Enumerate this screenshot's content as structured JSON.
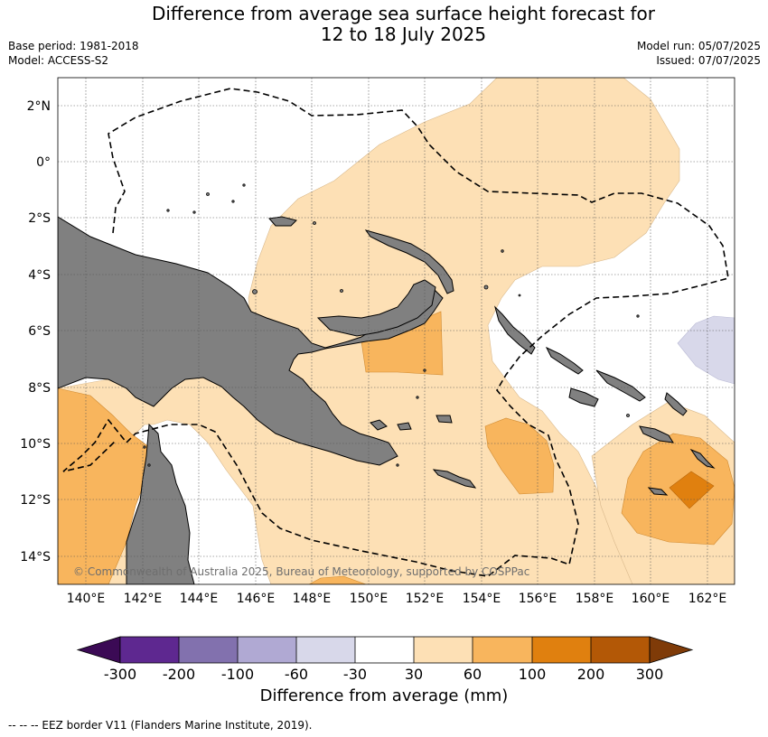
{
  "title": {
    "line1": "Difference from average sea surface height forecast for",
    "line2": "12 to 18 July 2025"
  },
  "meta": {
    "base_period": "Base period: 1981-2018",
    "model": "Model: ACCESS-S2",
    "model_run": "Model run: 05/07/2025",
    "issued": "Issued: 07/07/2025"
  },
  "map": {
    "lat_labels": [
      "2°N",
      "0°",
      "2°S",
      "4°S",
      "6°S",
      "8°S",
      "10°S",
      "12°S",
      "14°S"
    ],
    "lon_labels": [
      "140°E",
      "142°E",
      "144°E",
      "146°E",
      "148°E",
      "150°E",
      "152°E",
      "154°E",
      "156°E",
      "158°E",
      "160°E",
      "162°E"
    ],
    "copyright": "© Commonwealth of Australia 2025, Bureau of Meteorology, supported by COSPPac",
    "colors": {
      "land": "#808080",
      "band_30_60": "#fde0b5",
      "band_60_100": "#f8b55d",
      "band_100_200": "#e0800f",
      "band_neg_60_30": "#d8d8ea"
    }
  },
  "colorbar": {
    "ticks": [
      "-300",
      "-200",
      "-100",
      "-60",
      "-30",
      "30",
      "60",
      "100",
      "200",
      "300"
    ],
    "colors": [
      "#3b0a55",
      "#5e2890",
      "#8271ae",
      "#b0a9d3",
      "#d8d8ea",
      "#ffffff",
      "#fde0b5",
      "#f8b55d",
      "#e0800f",
      "#b35806",
      "#7f3b08"
    ],
    "label": "Difference from average (mm)"
  },
  "footnote": "--  --  -- EEZ border V11 (Flanders Marine Institute, 2019)."
}
